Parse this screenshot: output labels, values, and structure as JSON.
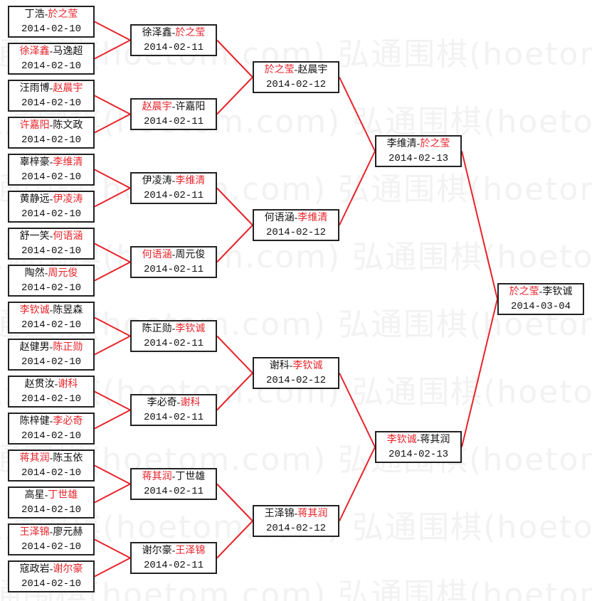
{
  "watermark": "弘通围棋(hoetom.com)",
  "separator": "-",
  "colors": {
    "winner": "#e8232a",
    "line": "#e8232a",
    "border": "#222222",
    "text": "#111111"
  },
  "rounds": [
    [
      {
        "p1": "丁浩",
        "p2": "於之莹",
        "winner": 2,
        "date": "2014-02-10"
      },
      {
        "p1": "徐泽鑫",
        "p2": "马逸超",
        "winner": 1,
        "date": "2014-02-10"
      },
      {
        "p1": "汪雨博",
        "p2": "赵晨宇",
        "winner": 2,
        "date": "2014-02-10"
      },
      {
        "p1": "许嘉阳",
        "p2": "陈文政",
        "winner": 1,
        "date": "2014-02-10"
      },
      {
        "p1": "辜梓豪",
        "p2": "李维清",
        "winner": 2,
        "date": "2014-02-10"
      },
      {
        "p1": "黄静远",
        "p2": "伊凌涛",
        "winner": 2,
        "date": "2014-02-10"
      },
      {
        "p1": "舒一笑",
        "p2": "何语涵",
        "winner": 2,
        "date": "2014-02-10"
      },
      {
        "p1": "陶然",
        "p2": "周元俊",
        "winner": 2,
        "date": "2014-02-10"
      },
      {
        "p1": "李钦诚",
        "p2": "陈昱森",
        "winner": 1,
        "date": "2014-02-10"
      },
      {
        "p1": "赵健男",
        "p2": "陈正勋",
        "winner": 2,
        "date": "2014-02-10"
      },
      {
        "p1": "赵贯汝",
        "p2": "谢科",
        "winner": 2,
        "date": "2014-02-10"
      },
      {
        "p1": "陈梓健",
        "p2": "李必奇",
        "winner": 2,
        "date": "2014-02-10"
      },
      {
        "p1": "蒋其润",
        "p2": "陈玉依",
        "winner": 1,
        "date": "2014-02-10"
      },
      {
        "p1": "高星",
        "p2": "丁世雄",
        "winner": 2,
        "date": "2014-02-10"
      },
      {
        "p1": "王泽锦",
        "p2": "廖元赫",
        "winner": 1,
        "date": "2014-02-10"
      },
      {
        "p1": "寇政岩",
        "p2": "谢尔豪",
        "winner": 2,
        "date": "2014-02-10"
      }
    ],
    [
      {
        "p1": "徐泽鑫",
        "p2": "於之莹",
        "winner": 2,
        "date": "2014-02-11"
      },
      {
        "p1": "赵晨宇",
        "p2": "许嘉阳",
        "winner": 1,
        "date": "2014-02-11"
      },
      {
        "p1": "伊凌涛",
        "p2": "李维清",
        "winner": 2,
        "date": "2014-02-11"
      },
      {
        "p1": "何语涵",
        "p2": "周元俊",
        "winner": 1,
        "date": "2014-02-11"
      },
      {
        "p1": "陈正勋",
        "p2": "李钦诚",
        "winner": 2,
        "date": "2014-02-11"
      },
      {
        "p1": "李必奇",
        "p2": "谢科",
        "winner": 2,
        "date": "2014-02-11"
      },
      {
        "p1": "蒋其润",
        "p2": "丁世雄",
        "winner": 1,
        "date": "2014-02-11"
      },
      {
        "p1": "谢尔豪",
        "p2": "王泽锦",
        "winner": 2,
        "date": "2014-02-11"
      }
    ],
    [
      {
        "p1": "於之莹",
        "p2": "赵晨宇",
        "winner": 1,
        "date": "2014-02-12"
      },
      {
        "p1": "何语涵",
        "p2": "李维清",
        "winner": 2,
        "date": "2014-02-12"
      },
      {
        "p1": "谢科",
        "p2": "李钦诚",
        "winner": 2,
        "date": "2014-02-12"
      },
      {
        "p1": "王泽锦",
        "p2": "蒋其润",
        "winner": 2,
        "date": "2014-02-12"
      }
    ],
    [
      {
        "p1": "李维清",
        "p2": "於之莹",
        "winner": 2,
        "date": "2014-02-13"
      },
      {
        "p1": "李钦诚",
        "p2": "蒋其润",
        "winner": 1,
        "date": "2014-02-13"
      }
    ],
    [
      {
        "p1": "於之莹",
        "p2": "李钦诚",
        "winner": 1,
        "date": "2014-03-04"
      }
    ]
  ]
}
